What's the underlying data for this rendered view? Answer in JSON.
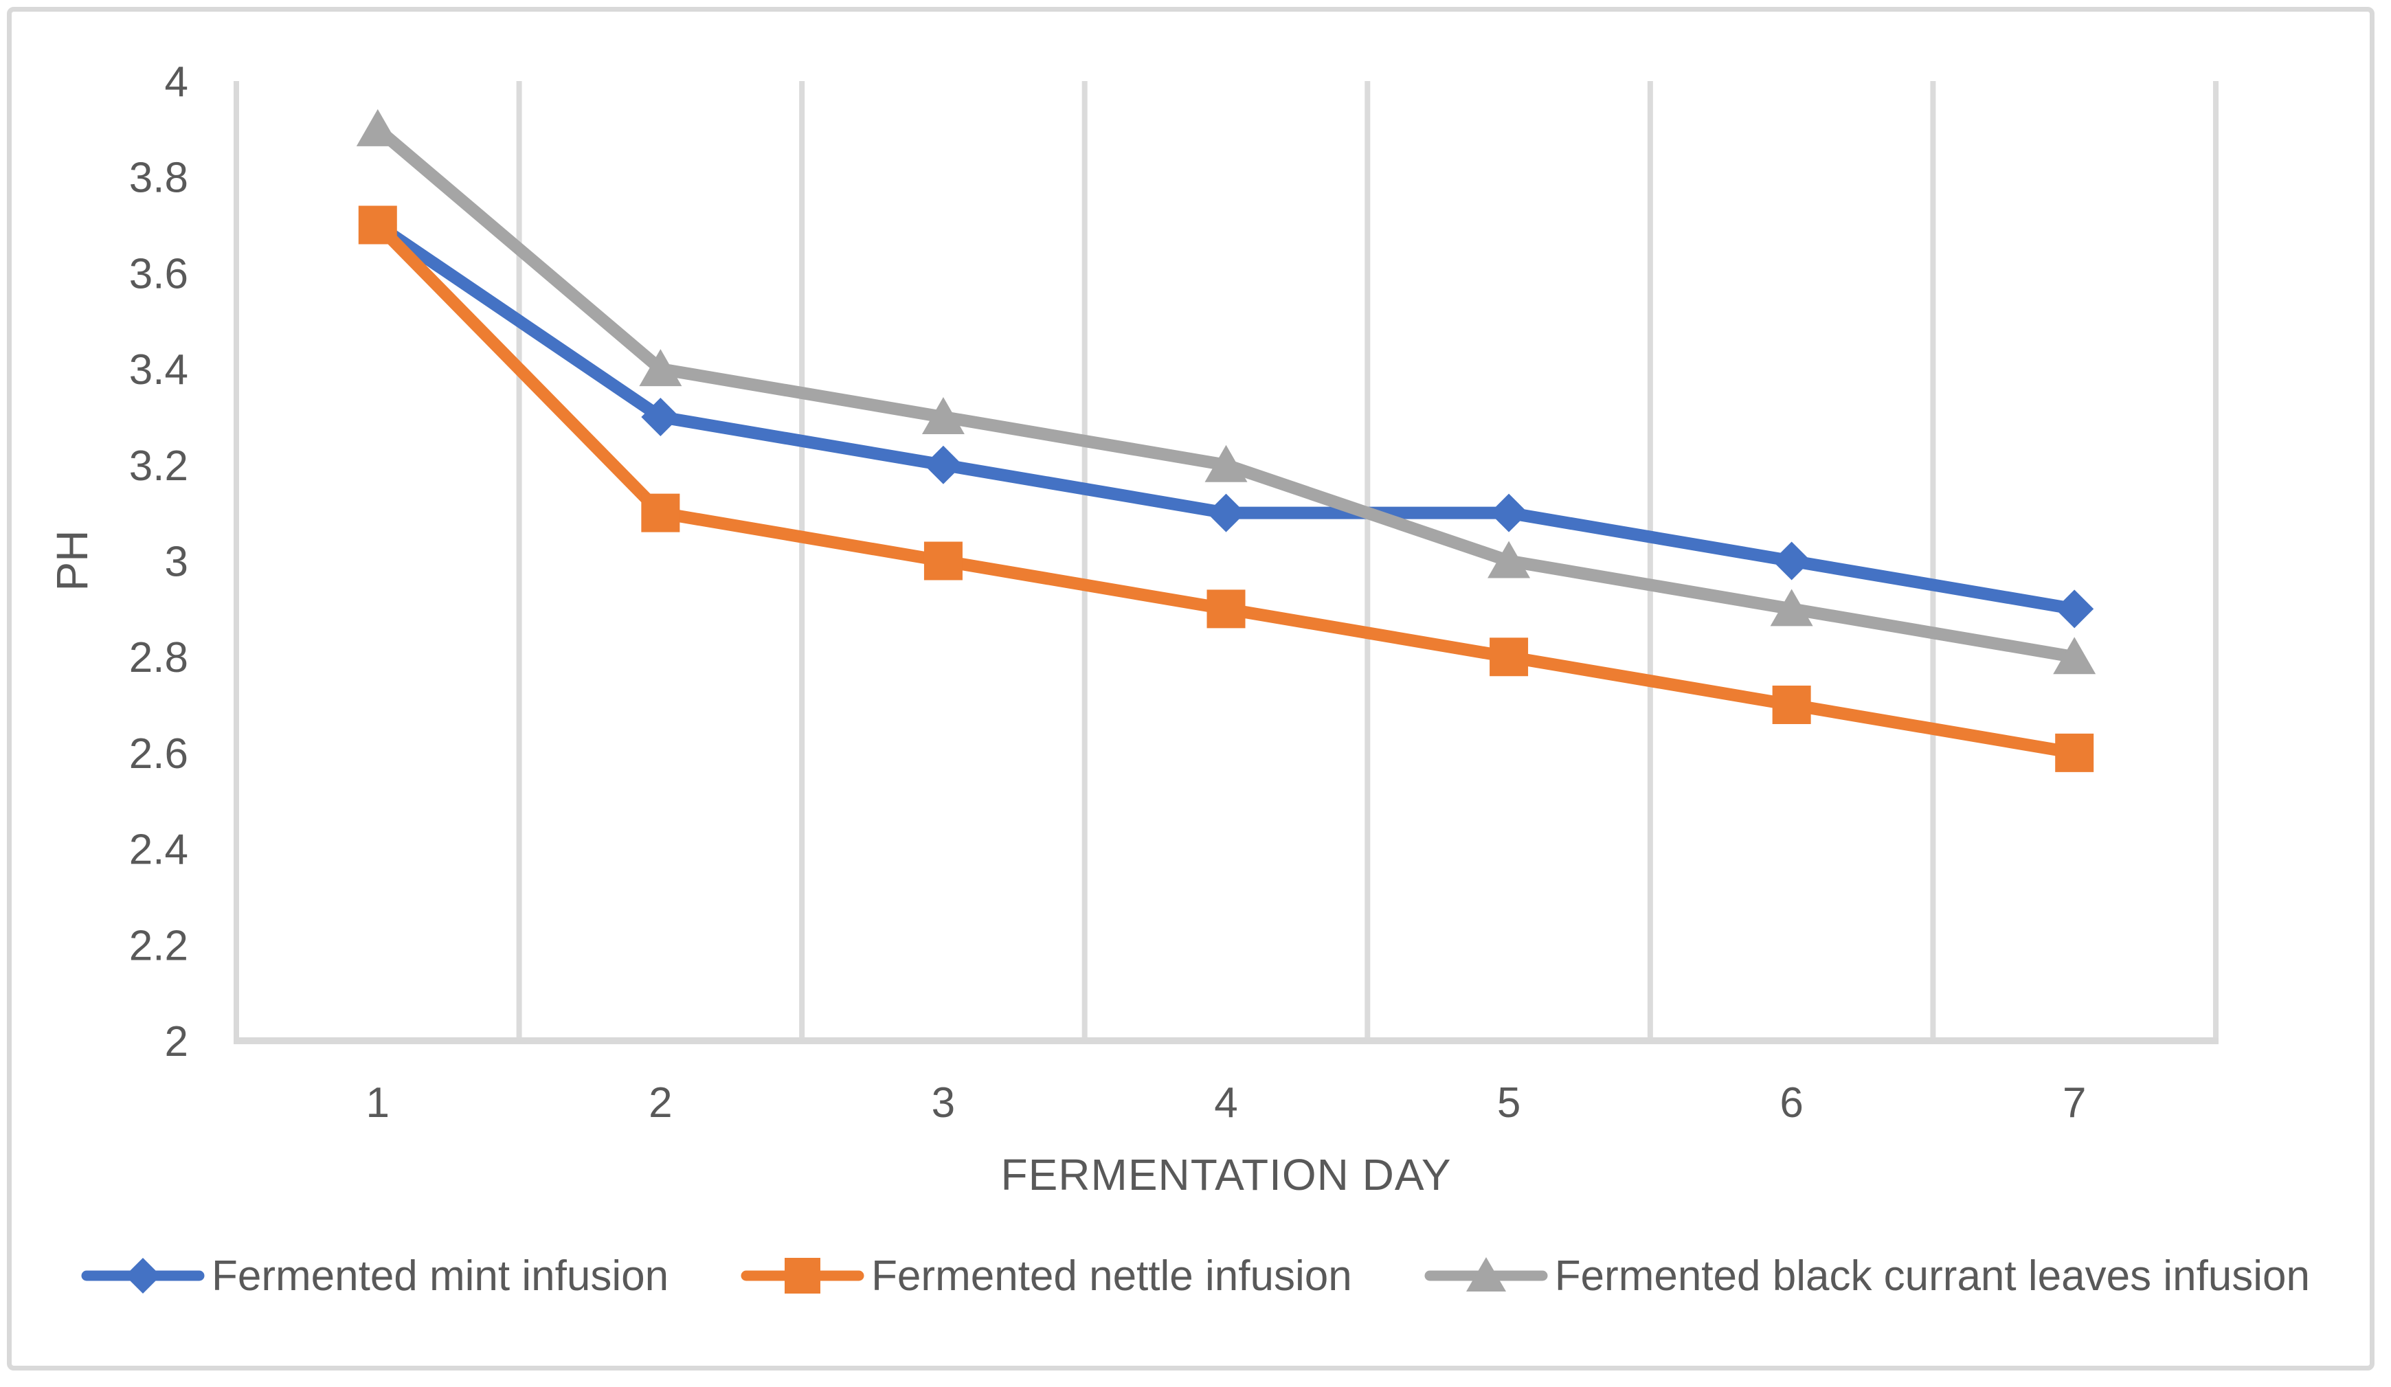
{
  "chart_data": {
    "type": "line",
    "xlabel": "FERMENTATION DAY",
    "ylabel": "PH",
    "categories": [
      "1",
      "2",
      "3",
      "4",
      "5",
      "6",
      "7"
    ],
    "y_ticks": [
      "4",
      "3.8",
      "3.6",
      "3.4",
      "3.2",
      "3",
      "2.8",
      "2.6",
      "2.4",
      "2.2",
      "2"
    ],
    "ylim": [
      2,
      4
    ],
    "grid": "vertical-gridlines-only",
    "legend_position": "bottom",
    "series": [
      {
        "name": "Fermented mint infusion",
        "color": "#4472C4",
        "marker": "diamond",
        "values": [
          3.7,
          3.3,
          3.2,
          3.1,
          3.1,
          3.0,
          2.9
        ]
      },
      {
        "name": "Fermented nettle infusion",
        "color": "#ED7D31",
        "marker": "square",
        "values": [
          3.7,
          3.1,
          3.0,
          2.9,
          2.8,
          2.7,
          2.6
        ]
      },
      {
        "name": "Fermented black currant leaves infusion",
        "color": "#A5A5A5",
        "marker": "triangle",
        "values": [
          3.9,
          3.4,
          3.3,
          3.2,
          3.0,
          2.9,
          2.8
        ]
      }
    ],
    "colors": {
      "gridline": "#DBDBDB",
      "axis_line": "#D9D9D9",
      "text": "#595959",
      "background": "#FFFFFF",
      "border": "#D9D9D9"
    }
  }
}
